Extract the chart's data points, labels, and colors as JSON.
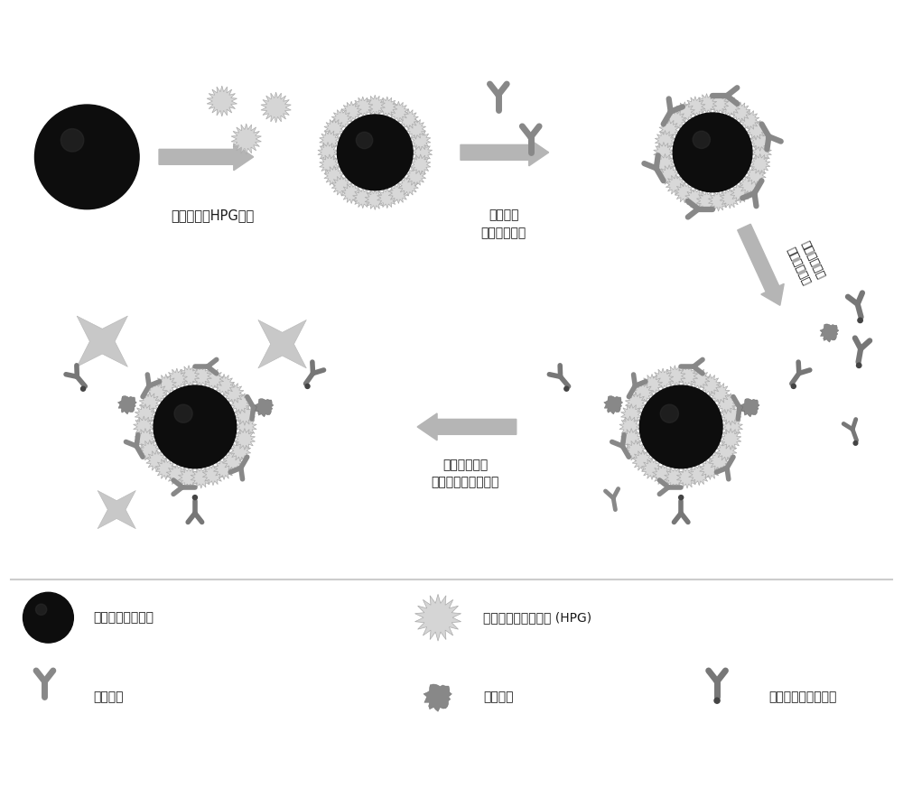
{
  "bg_color": "#ffffff",
  "dark_core_color": "#0d0d0d",
  "hpg_ring_color": "#bbbbbb",
  "hpg_inner_color": "#d8d8d8",
  "hpg_outer_color": "#999999",
  "arrow_color": "#b0b0b0",
  "text_color": "#1a1a1a",
  "antibody_color": "#888888",
  "detect_ab_color": "#777777",
  "antigen_color": "#888888",
  "star_color": "#cccccc",
  "label1": "纳米磁珠用HPG修饰",
  "label2": "磁珠表面\n包被捕获抗体",
  "label3": "加入待测抗原\n及其检测抗体",
  "label4": "磁性分离清洗\n加入激发物检测发光",
  "legend1": "氨基表面纳米磁珠",
  "legend2": "超支化聚缩水甸油醚 (HPG)",
  "legend3": "捕获抗体",
  "legend4": "待测抗原",
  "legend5": "咀啺酯修饰检测抗体"
}
